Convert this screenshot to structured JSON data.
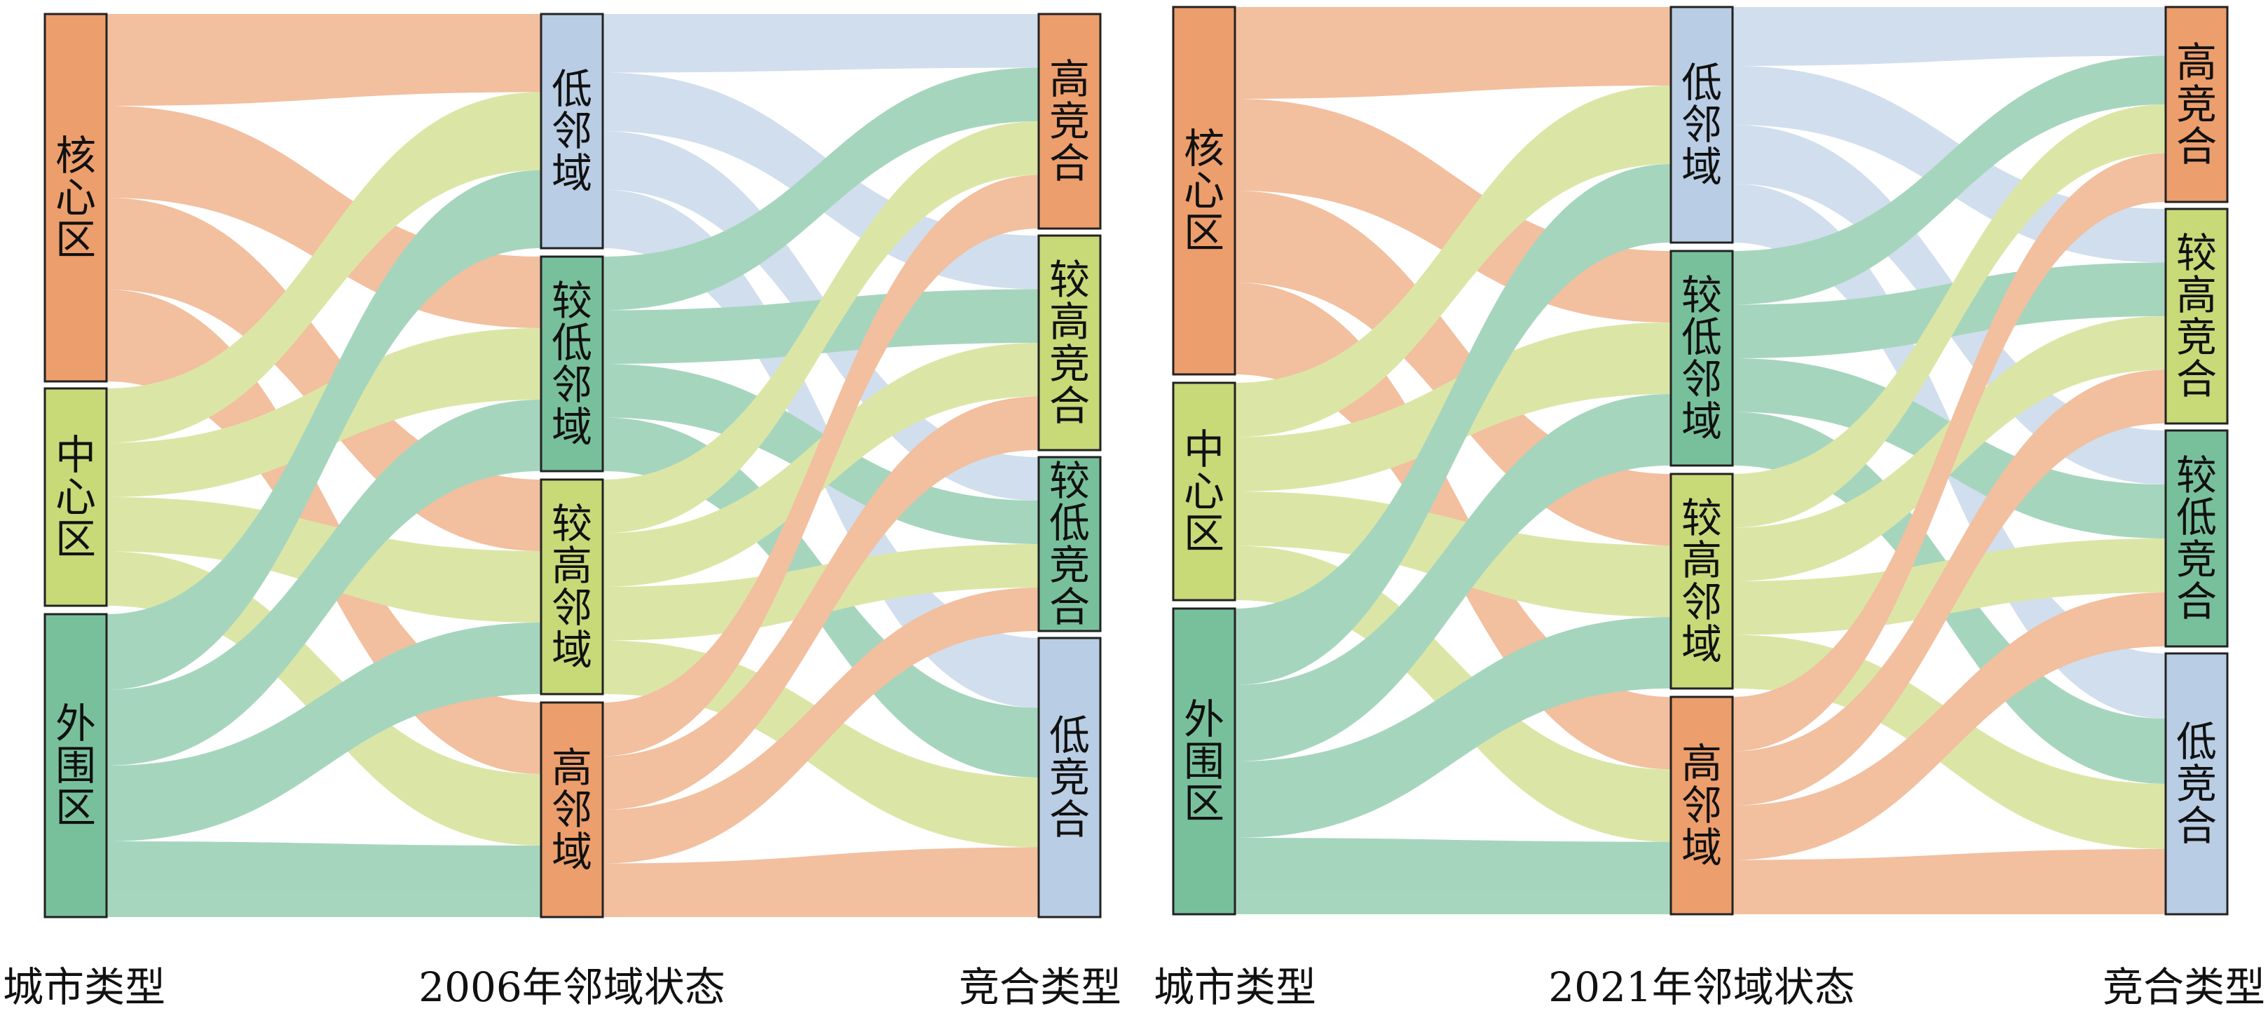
{
  "colors": {
    "core": "#ec9e6c",
    "middle": "#c8d978",
    "outer": "#78c09c",
    "low_neighborhood": "#b9cde4",
    "high_competition": "#ec9e6c",
    "medium_high_competition": "#c8d978",
    "medium_low_competition": "#78c09c",
    "low_competition": "#b9cde4"
  },
  "panels": [
    {
      "id": "p2006",
      "column_labels": [
        "城市类型",
        "2006年邻域状态",
        "竞合类型"
      ],
      "left_nodes": [
        {
          "label": "核心区",
          "color": "#ec9e6c"
        },
        {
          "label": "中心区",
          "color": "#c8d978"
        },
        {
          "label": "外围区",
          "color": "#78c09c"
        }
      ],
      "mid_nodes": [
        {
          "label": "低邻域",
          "color": "#b9cde4"
        },
        {
          "label": "较低邻域",
          "color": "#78c09c"
        },
        {
          "label": "较高邻域",
          "color": "#c8d978"
        },
        {
          "label": "高邻域",
          "color": "#ec9e6c"
        }
      ],
      "right_nodes": [
        {
          "label": "高竞合",
          "color": "#ec9e6c"
        },
        {
          "label": "较高竞合",
          "color": "#c8d978"
        },
        {
          "label": "较低竞合",
          "color": "#78c09c"
        },
        {
          "label": "低竞合",
          "color": "#b9cde4"
        }
      ]
    },
    {
      "id": "p2021",
      "column_labels": [
        "城市类型",
        "2021年邻域状态",
        "竞合类型"
      ],
      "left_nodes": [
        {
          "label": "核心区",
          "color": "#ec9e6c"
        },
        {
          "label": "中心区",
          "color": "#c8d978"
        },
        {
          "label": "外围区",
          "color": "#78c09c"
        }
      ],
      "mid_nodes": [
        {
          "label": "低邻域",
          "color": "#b9cde4"
        },
        {
          "label": "较低邻域",
          "color": "#78c09c"
        },
        {
          "label": "较高邻域",
          "color": "#c8d978"
        },
        {
          "label": "高邻域",
          "color": "#ec9e6c"
        }
      ],
      "right_nodes": [
        {
          "label": "高竞合",
          "color": "#ec9e6c"
        },
        {
          "label": "较高竞合",
          "color": "#c8d978"
        },
        {
          "label": "较低竞合",
          "color": "#78c09c"
        },
        {
          "label": "低竞合",
          "color": "#b9cde4"
        }
      ]
    }
  ]
}
